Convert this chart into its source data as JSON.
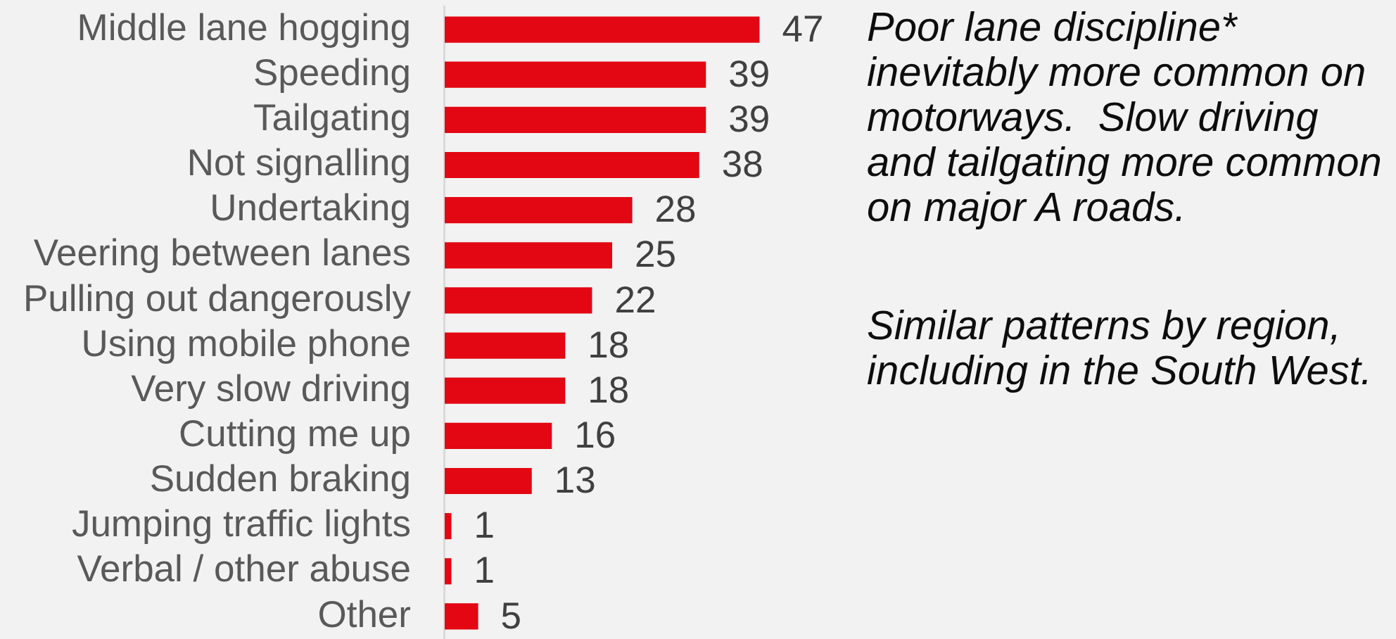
{
  "chart_data": {
    "type": "bar",
    "orientation": "horizontal",
    "categories": [
      "Middle lane hogging",
      "Speeding",
      "Tailgating",
      "Not signalling",
      "Undertaking",
      "Veering between lanes",
      "Pulling out dangerously",
      "Using mobile phone",
      "Very slow driving",
      "Cutting me up",
      "Sudden braking",
      "Jumping traffic lights",
      "Verbal / other abuse",
      "Other"
    ],
    "values": [
      47,
      39,
      39,
      38,
      28,
      25,
      22,
      18,
      18,
      16,
      13,
      1,
      1,
      5
    ],
    "color": "#e30613",
    "data_labels": true,
    "tick_labels": "y",
    "annotations": [
      "Poor lane discipline* inevitably more common on motorways.  Slow driving and tailgating more common on major A roads.",
      "Similar patterns by region, including in the South West."
    ]
  }
}
